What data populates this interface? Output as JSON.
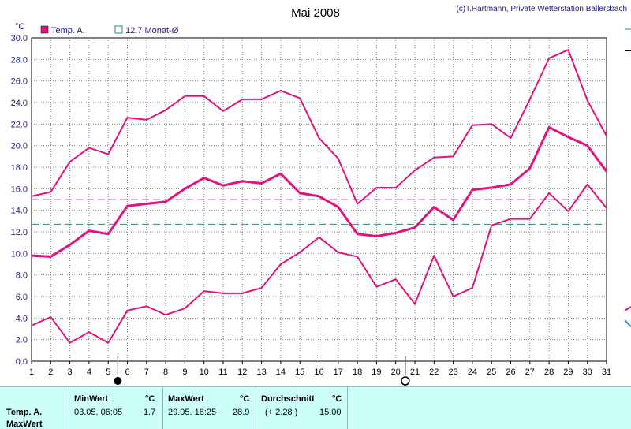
{
  "colors": {
    "temp": "#e0147f",
    "avg_line": "#2e8b7a",
    "ref_line": "#c060c0",
    "grid": "#808080",
    "panel_bg": "#ccfff8"
  },
  "chart_data": {
    "type": "line",
    "title": "Mai 2008",
    "credit": "(c)T.Hartmann, Private Wetterstation Ballersbach",
    "unit": "°C",
    "legend": {
      "temp_label": "Temp. A.",
      "avg_label": "12.7 Monat-Ø"
    },
    "x": [
      1,
      2,
      3,
      4,
      5,
      6,
      7,
      8,
      9,
      10,
      11,
      12,
      13,
      14,
      15,
      16,
      17,
      18,
      19,
      20,
      21,
      22,
      23,
      24,
      25,
      26,
      27,
      28,
      29,
      30,
      31
    ],
    "xlim": [
      1,
      31
    ],
    "ylim": [
      0,
      30
    ],
    "yticks": [
      "0.0",
      "2.0",
      "4.0",
      "6.0",
      "8.0",
      "10.0",
      "12.0",
      "14.0",
      "16.0",
      "18.0",
      "20.0",
      "22.0",
      "24.0",
      "26.0",
      "28.0",
      "30.0"
    ],
    "series": [
      {
        "role": "max",
        "values": [
          15.3,
          15.7,
          18.5,
          19.8,
          19.2,
          22.6,
          22.4,
          23.3,
          24.6,
          24.6,
          23.2,
          24.3,
          24.3,
          25.1,
          24.4,
          20.7,
          18.8,
          14.6,
          16.1,
          16.1,
          17.7,
          18.9,
          19.0,
          21.9,
          22.0,
          20.7,
          24.3,
          28.1,
          28.9,
          24.2,
          20.9
        ]
      },
      {
        "role": "mean",
        "values": [
          9.8,
          9.7,
          10.8,
          12.1,
          11.8,
          14.4,
          14.6,
          14.8,
          16.0,
          17.0,
          16.3,
          16.7,
          16.5,
          17.4,
          15.6,
          15.3,
          14.3,
          11.8,
          11.6,
          11.9,
          12.4,
          14.3,
          13.1,
          15.9,
          16.1,
          16.4,
          17.9,
          21.7,
          20.8,
          20.0,
          17.6
        ]
      },
      {
        "role": "min",
        "values": [
          3.3,
          4.1,
          1.7,
          2.7,
          1.7,
          4.7,
          5.1,
          4.3,
          4.9,
          6.5,
          6.3,
          6.3,
          6.8,
          9.0,
          10.1,
          11.5,
          10.1,
          9.7,
          6.9,
          7.6,
          5.3,
          9.8,
          6.0,
          6.8,
          12.6,
          13.2,
          13.2,
          15.6,
          13.9,
          16.4,
          14.2
        ]
      }
    ],
    "reference_lines": [
      {
        "role": "monthly-average",
        "value": 12.7
      },
      {
        "role": "reference",
        "value": 15.0
      }
    ],
    "markers": {
      "full_moon_day": 6,
      "new_moon_day": 21
    },
    "grid": true
  },
  "info": {
    "row_label_1": "Temp. A.",
    "row_label_2": "MaxWert",
    "min_header": "MinWert",
    "min_unit": "°C",
    "min_datetime": "03.05.  06:05",
    "min_value": "1.7",
    "max_header": "MaxWert",
    "max_unit": "°C",
    "max_datetime": "29.05.  16:25",
    "max_value": "28.9",
    "avg_header": "Durchschnitt",
    "avg_unit": "°C",
    "avg_delta": "(+ 2.28 )",
    "avg_value": "15.00"
  }
}
